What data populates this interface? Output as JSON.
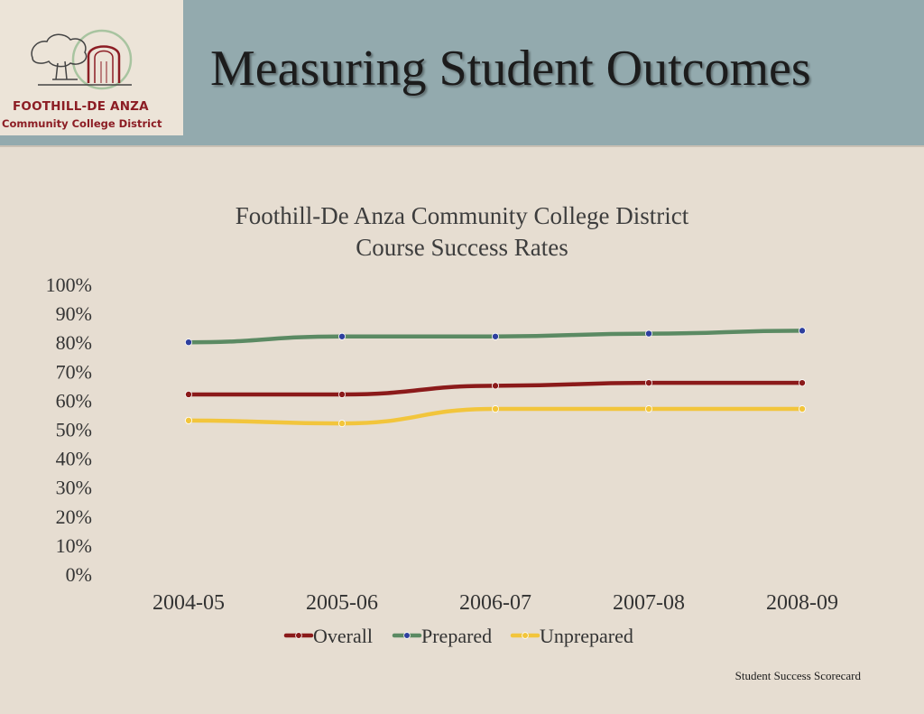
{
  "header": {
    "title": "Measuring Student Outcomes",
    "logo_line1": "FOOTHILL-DE ANZA",
    "logo_line2": "Community College District"
  },
  "colors": {
    "header_bg": "#93aaae",
    "slide_bg": "#e6ddd1",
    "logo_text": "#8c1d24"
  },
  "chart_data": {
    "type": "line",
    "title_line1": "Foothill-De Anza Community College District",
    "title_line2": "Course Success Rates",
    "categories": [
      "2004-05",
      "2005-06",
      "2006-07",
      "2007-08",
      "2008-09"
    ],
    "series": [
      {
        "name": "Overall",
        "values": [
          62,
          62,
          65,
          66,
          66
        ],
        "line_color": "#8b1a1a",
        "marker_color": "#8b1a1a"
      },
      {
        "name": "Prepared",
        "values": [
          80,
          82,
          82,
          83,
          84
        ],
        "line_color": "#5b8a63",
        "marker_color": "#2e3f9e"
      },
      {
        "name": "Unprepared",
        "values": [
          53,
          52,
          57,
          57,
          57
        ],
        "line_color": "#f2c53c",
        "marker_color": "#f2c53c"
      }
    ],
    "ylim": [
      0,
      100
    ],
    "y_ticks": [
      "0%",
      "10%",
      "20%",
      "30%",
      "40%",
      "50%",
      "60%",
      "70%",
      "80%",
      "90%",
      "100%"
    ],
    "grid": false,
    "legend": "bottom"
  },
  "footer": {
    "text": "Student Success Scorecard"
  }
}
